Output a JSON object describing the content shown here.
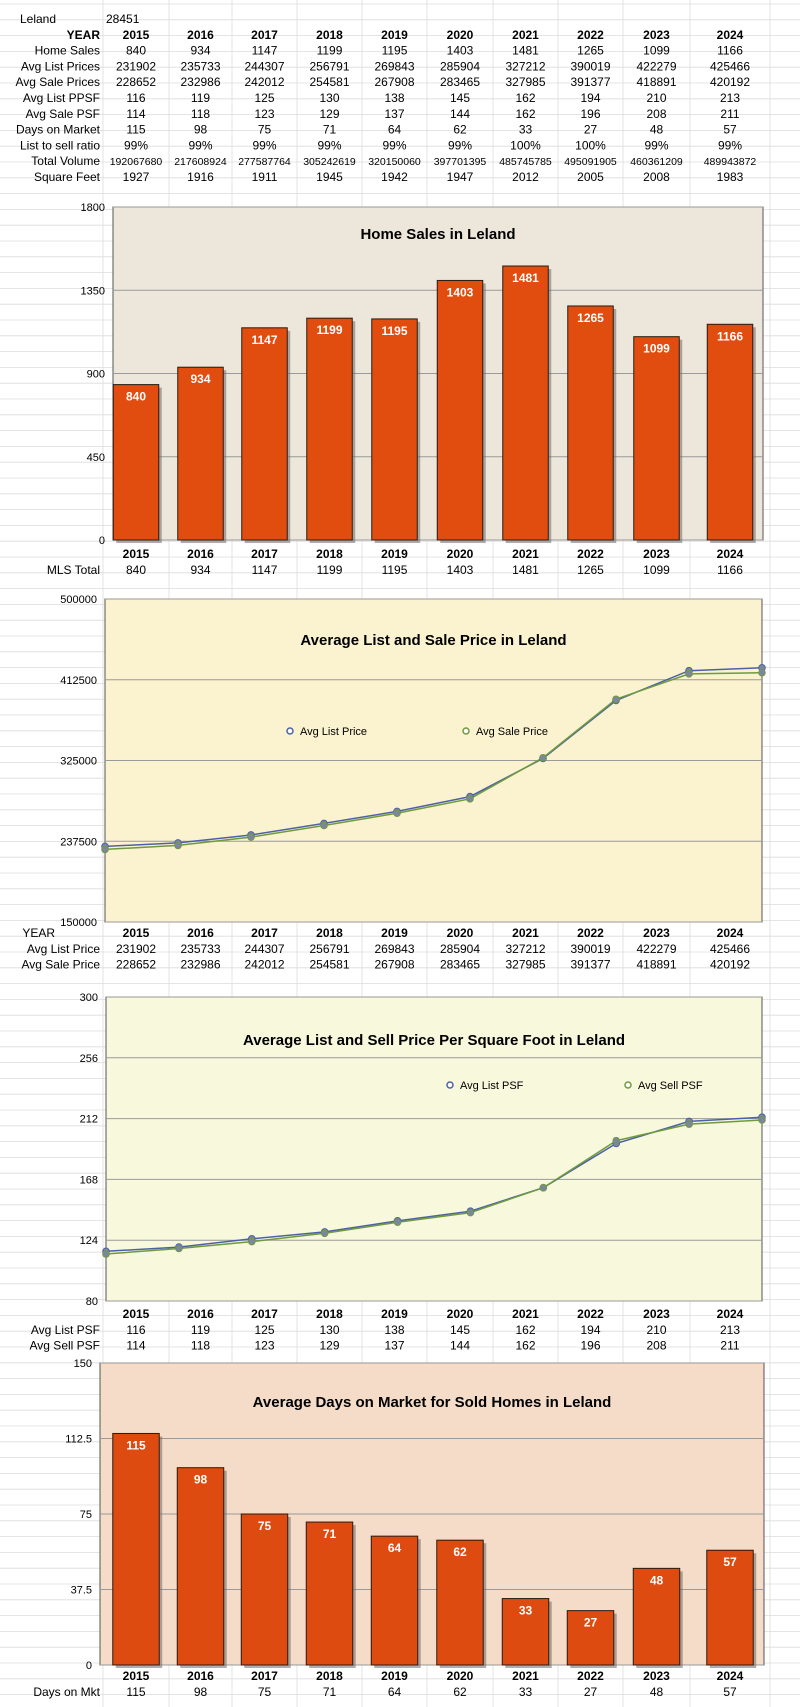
{
  "sheet": {
    "city": "Leland",
    "city_value": "28451",
    "header_label": "YEAR",
    "years": [
      "2015",
      "2016",
      "2017",
      "2018",
      "2019",
      "2020",
      "2021",
      "2022",
      "2023",
      "2024"
    ],
    "rows": [
      {
        "label": "Home Sales",
        "values": [
          "840",
          "934",
          "1147",
          "1199",
          "1195",
          "1403",
          "1481",
          "1265",
          "1099",
          "1166"
        ]
      },
      {
        "label": "Avg List Prices",
        "values": [
          "231902",
          "235733",
          "244307",
          "256791",
          "269843",
          "285904",
          "327212",
          "390019",
          "422279",
          "425466"
        ]
      },
      {
        "label": "Avg Sale Prices",
        "values": [
          "228652",
          "232986",
          "242012",
          "254581",
          "267908",
          "283465",
          "327985",
          "391377",
          "418891",
          "420192"
        ]
      },
      {
        "label": "Avg  List PPSF",
        "values": [
          "116",
          "119",
          "125",
          "130",
          "138",
          "145",
          "162",
          "194",
          "210",
          "213"
        ]
      },
      {
        "label": "Avg Sale PSF",
        "values": [
          "114",
          "118",
          "123",
          "129",
          "137",
          "144",
          "162",
          "196",
          "208",
          "211"
        ]
      },
      {
        "label": "Days on Market",
        "values": [
          "115",
          "98",
          "75",
          "71",
          "64",
          "62",
          "33",
          "27",
          "48",
          "57"
        ]
      },
      {
        "label": "List to sell ratio",
        "values": [
          "99%",
          "99%",
          "99%",
          "99%",
          "99%",
          "99%",
          "100%",
          "100%",
          "99%",
          "99%"
        ]
      },
      {
        "label": "Total Volume",
        "values": [
          "192067680",
          "217608924",
          "277587764",
          "305242619",
          "320150060",
          "397701395",
          "485745785",
          "495091905",
          "460361209",
          "489943872"
        ]
      },
      {
        "label": "Square Feet",
        "values": [
          "1927",
          "1916",
          "1911",
          "1945",
          "1942",
          "1947",
          "2012",
          "2005",
          "2008",
          "1983"
        ]
      }
    ]
  },
  "chart_data": [
    {
      "type": "bar",
      "title": "Home Sales in Leland",
      "categories": [
        "2015",
        "2016",
        "2017",
        "2018",
        "2019",
        "2020",
        "2021",
        "2022",
        "2023",
        "2024"
      ],
      "values": [
        840,
        934,
        1147,
        1199,
        1195,
        1403,
        1481,
        1265,
        1099,
        1166
      ],
      "value_labels": [
        "840",
        "934",
        "1147",
        "1199",
        "1195",
        "1403",
        "1481",
        "1265",
        "1099",
        "1166"
      ],
      "ylim": [
        0,
        1800
      ],
      "yticks": [
        "0",
        "450",
        "900",
        "1350",
        "1800"
      ],
      "bar_color": "#e14c0f",
      "background": "#ece7da",
      "grid": true,
      "table_rows": [
        {
          "label": "MLS Total",
          "values": [
            "840",
            "934",
            "1147",
            "1199",
            "1195",
            "1403",
            "1481",
            "1265",
            "1099",
            "1166"
          ]
        }
      ]
    },
    {
      "type": "line",
      "title": "Average List and Sale Price in Leland",
      "categories": [
        "2015",
        "2016",
        "2017",
        "2018",
        "2019",
        "2020",
        "2021",
        "2022",
        "2023",
        "2024"
      ],
      "series": [
        {
          "name": "Avg List Price",
          "values": [
            231902,
            235733,
            244307,
            256791,
            269843,
            285904,
            327212,
            390019,
            422279,
            425466
          ],
          "color": "#4d61a9"
        },
        {
          "name": "Avg Sale Price",
          "values": [
            228652,
            232986,
            242012,
            254581,
            267908,
            283465,
            327985,
            391377,
            418891,
            420192
          ],
          "color": "#6f9a3e"
        }
      ],
      "ylim": [
        150000,
        500000
      ],
      "yticks": [
        "150000",
        "237500",
        "325000",
        "412500",
        "500000"
      ],
      "legend_position": "middle",
      "background": "#fbf3cf",
      "grid": true,
      "table_header": "YEAR",
      "table_rows": [
        {
          "label": "Avg List Price",
          "values": [
            "231902",
            "235733",
            "244307",
            "256791",
            "269843",
            "285904",
            "327212",
            "390019",
            "422279",
            "425466"
          ]
        },
        {
          "label": "Avg Sale Price",
          "values": [
            "228652",
            "232986",
            "242012",
            "254581",
            "267908",
            "283465",
            "327985",
            "391377",
            "418891",
            "420192"
          ]
        }
      ]
    },
    {
      "type": "line",
      "title": "Average List and Sell Price Per Square Foot in Leland",
      "categories": [
        "2015",
        "2016",
        "2017",
        "2018",
        "2019",
        "2020",
        "2021",
        "2022",
        "2023",
        "2024"
      ],
      "series": [
        {
          "name": "Avg List PSF",
          "values": [
            116,
            119,
            125,
            130,
            138,
            145,
            162,
            194,
            210,
            213
          ],
          "color": "#4d61a9"
        },
        {
          "name": "Avg Sell PSF",
          "values": [
            114,
            118,
            123,
            129,
            137,
            144,
            162,
            196,
            208,
            211
          ],
          "color": "#6f9a3e"
        }
      ],
      "ylim": [
        80,
        300
      ],
      "yticks": [
        "80",
        "124",
        "168",
        "212",
        "256",
        "300"
      ],
      "legend_position": "top-right",
      "background": "#f7f8dc",
      "grid": true,
      "table_rows": [
        {
          "label": "Avg List PSF",
          "values": [
            "116",
            "119",
            "125",
            "130",
            "138",
            "145",
            "162",
            "194",
            "210",
            "213"
          ]
        },
        {
          "label": "Avg Sell PSF",
          "values": [
            "114",
            "118",
            "123",
            "129",
            "137",
            "144",
            "162",
            "196",
            "208",
            "211"
          ]
        }
      ]
    },
    {
      "type": "bar",
      "title": "Average Days on Market for Sold Homes in Leland",
      "categories": [
        "2015",
        "2016",
        "2017",
        "2018",
        "2019",
        "2020",
        "2021",
        "2022",
        "2023",
        "2024"
      ],
      "values": [
        115,
        98,
        75,
        71,
        64,
        62,
        33,
        27,
        48,
        57
      ],
      "value_labels": [
        "115",
        "98",
        "75",
        "71",
        "64",
        "62",
        "33",
        "27",
        "48",
        "57"
      ],
      "ylim": [
        0,
        150
      ],
      "yticks": [
        "0",
        "37.5",
        "75",
        "112.5",
        "150"
      ],
      "bar_color": "#dd4b10",
      "background": "#f4dcc8",
      "grid": true,
      "table_rows": [
        {
          "label": "Days on Mkt",
          "values": [
            "115",
            "98",
            "75",
            "71",
            "64",
            "62",
            "33",
            "27",
            "48",
            "57"
          ]
        }
      ]
    }
  ]
}
